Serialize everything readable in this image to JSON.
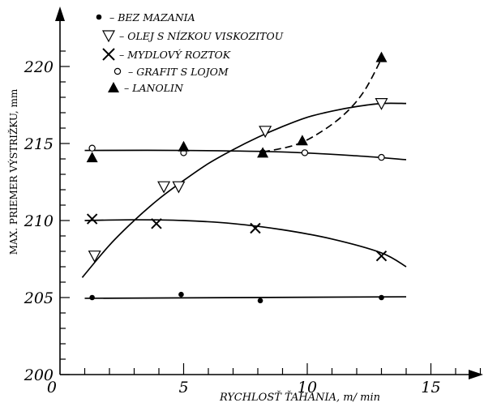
{
  "chart_data": {
    "type": "scatter",
    "xlabel": "RYCHLOSŤ ŤAHANIA,  m/ min",
    "ylabel": "MAX. PRIEMER VÝSTRIŽKU, mm",
    "xlim": [
      0,
      18
    ],
    "ylim": [
      200,
      222
    ],
    "x_ticks": [
      0,
      5,
      10,
      15
    ],
    "x_tick_labels": [
      "0",
      "5",
      "10",
      "15"
    ],
    "y_ticks": [
      200,
      205,
      210,
      215,
      220
    ],
    "y_tick_labels": [
      "200",
      "205",
      "210",
      "215",
      "220"
    ],
    "grid": false,
    "legend_position": "top-center",
    "series": [
      {
        "name": "BEZ MAZANIA",
        "marker": "filled-circle",
        "points": [
          [
            1.3,
            205.0
          ],
          [
            4.9,
            205.2
          ],
          [
            8.1,
            204.8
          ],
          [
            13.0,
            205.0
          ]
        ],
        "curve": [
          [
            1.0,
            204.95
          ],
          [
            14.0,
            205.05
          ]
        ],
        "curve_style": "solid"
      },
      {
        "name": "OLEJ S NÍZKOU VISKOZITOU",
        "marker": "open-triangle-down",
        "points": [
          [
            1.4,
            207.7
          ],
          [
            4.2,
            212.2
          ],
          [
            4.8,
            212.2
          ],
          [
            8.3,
            215.8
          ],
          [
            13.0,
            217.6
          ]
        ],
        "curve": [
          [
            0.9,
            206.3
          ],
          [
            2.0,
            208.4
          ],
          [
            3.0,
            210.0
          ],
          [
            4.0,
            211.4
          ],
          [
            5.0,
            212.6
          ],
          [
            6.0,
            213.7
          ],
          [
            7.0,
            214.6
          ],
          [
            8.0,
            215.4
          ],
          [
            9.0,
            216.1
          ],
          [
            10.0,
            216.7
          ],
          [
            11.0,
            217.1
          ],
          [
            12.0,
            217.4
          ],
          [
            13.0,
            217.6
          ],
          [
            14.0,
            217.6
          ]
        ],
        "curve_style": "solid"
      },
      {
        "name": "MYDLOVÝ ROZTOK",
        "marker": "cross",
        "points": [
          [
            1.3,
            210.1
          ],
          [
            3.9,
            209.8
          ],
          [
            7.9,
            209.5
          ],
          [
            13.0,
            207.7
          ]
        ],
        "curve": [
          [
            1.0,
            210.0
          ],
          [
            3.0,
            210.05
          ],
          [
            5.0,
            210.0
          ],
          [
            7.0,
            209.8
          ],
          [
            9.0,
            209.4
          ],
          [
            11.0,
            208.8
          ],
          [
            13.0,
            207.9
          ],
          [
            14.0,
            207.0
          ]
        ],
        "curve_style": "solid"
      },
      {
        "name": "GRAFIT S LOJOM",
        "marker": "open-circle",
        "points": [
          [
            1.3,
            214.7
          ],
          [
            5.0,
            214.4
          ],
          [
            8.2,
            214.4
          ],
          [
            9.9,
            214.4
          ],
          [
            13.0,
            214.1
          ]
        ],
        "curve": [
          [
            1.0,
            214.55
          ],
          [
            5.0,
            214.55
          ],
          [
            9.0,
            214.45
          ],
          [
            12.0,
            214.2
          ],
          [
            14.0,
            213.95
          ]
        ],
        "curve_style": "solid"
      },
      {
        "name": "LANOLIN",
        "marker": "filled-triangle-up",
        "points": [
          [
            1.3,
            214.1
          ],
          [
            5.0,
            214.8
          ],
          [
            8.2,
            214.4
          ],
          [
            9.8,
            215.2
          ],
          [
            13.0,
            220.6
          ]
        ],
        "curve": [
          [
            8.2,
            214.45
          ],
          [
            9.5,
            214.9
          ],
          [
            10.5,
            215.7
          ],
          [
            11.5,
            216.9
          ],
          [
            12.3,
            218.4
          ],
          [
            13.0,
            220.5
          ]
        ],
        "curve_style": "dashed"
      }
    ]
  }
}
